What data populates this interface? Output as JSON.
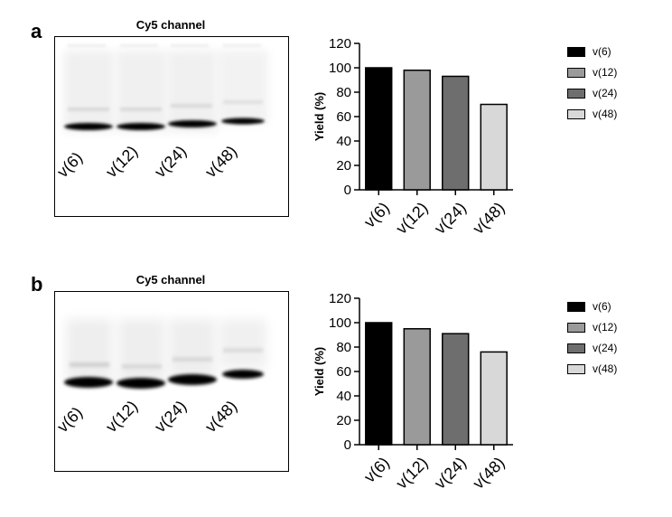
{
  "panels": [
    {
      "letter": "a",
      "gel_title": "Cy5 channel",
      "lanes": [
        "v(6)",
        "v(12)",
        "v(24)",
        "v(48)"
      ]
    },
    {
      "letter": "b",
      "gel_title": "Cy5 channel",
      "lanes": [
        "v(6)",
        "v(12)",
        "v(24)",
        "v(48)"
      ]
    }
  ],
  "colors": {
    "v6": "#000000",
    "v12": "#9a9a9a",
    "v24": "#6e6e6e",
    "v48": "#d8d8d8"
  },
  "chart_data": [
    {
      "type": "bar",
      "categories": [
        "v(6)",
        "v(12)",
        "v(24)",
        "v(48)"
      ],
      "values": [
        100,
        98,
        93,
        70
      ],
      "title": "",
      "xlabel": "",
      "ylabel": "Yield (%)",
      "ylim": [
        0,
        120
      ],
      "yticks": [
        0,
        20,
        40,
        60,
        80,
        100,
        120
      ],
      "legend": [
        "v(6)",
        "v(12)",
        "v(24)",
        "v(48)"
      ],
      "legend_position": "right",
      "grid": false
    },
    {
      "type": "bar",
      "categories": [
        "v(6)",
        "v(12)",
        "v(24)",
        "v(48)"
      ],
      "values": [
        100,
        95,
        91,
        76
      ],
      "title": "",
      "xlabel": "",
      "ylabel": "Yield (%)",
      "ylim": [
        0,
        120
      ],
      "yticks": [
        0,
        20,
        40,
        60,
        80,
        100,
        120
      ],
      "legend": [
        "v(6)",
        "v(12)",
        "v(24)",
        "v(48)"
      ],
      "legend_position": "right",
      "grid": false
    }
  ]
}
